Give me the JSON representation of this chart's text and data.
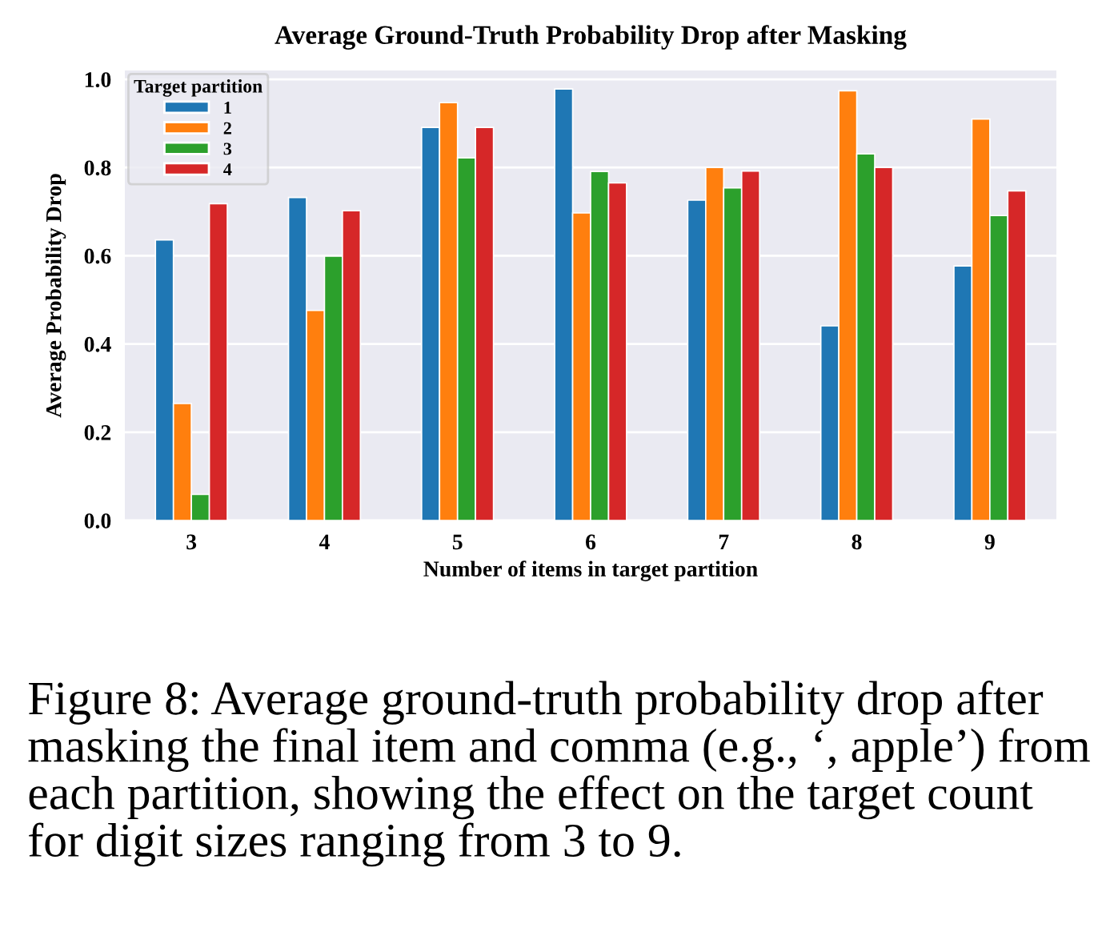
{
  "chart_data": {
    "type": "bar",
    "title": "Average Ground-Truth Probability Drop after Masking",
    "xlabel": "Number of items in target partition",
    "ylabel": "Average Probability Drop",
    "categories": [
      "3",
      "4",
      "5",
      "6",
      "7",
      "8",
      "9"
    ],
    "series": [
      {
        "name": "1",
        "color": "#1f77b4",
        "values": [
          0.636,
          0.732,
          0.891,
          0.978,
          0.726,
          0.441,
          0.577
        ]
      },
      {
        "name": "2",
        "color": "#ff7f0e",
        "values": [
          0.265,
          0.476,
          0.947,
          0.697,
          0.8,
          0.974,
          0.91
        ]
      },
      {
        "name": "3",
        "color": "#2ca02c",
        "values": [
          0.059,
          0.599,
          0.822,
          0.791,
          0.754,
          0.831,
          0.691
        ]
      },
      {
        "name": "4",
        "color": "#d62728",
        "values": [
          0.718,
          0.702,
          0.891,
          0.765,
          0.792,
          0.8,
          0.747
        ]
      }
    ],
    "legend_title": "Target partition",
    "legend": "top left",
    "ylim": [
      0,
      1.02
    ],
    "yticks": [
      {
        "value": 0,
        "label": "0.0"
      },
      {
        "value": 0.2,
        "label": "0.2"
      },
      {
        "value": 0.4,
        "label": "0.4"
      },
      {
        "value": 0.6,
        "label": "0.6"
      },
      {
        "value": 0.8,
        "label": "0.8"
      },
      {
        "value": 1,
        "label": "1.0"
      }
    ],
    "grid": "y",
    "annotations": [
      "Figure 8: Average ground-truth probability drop after masking the final item and comma (e.g., ‘, apple’) from each partition, showing the effect on the target count for digit sizes ranging from 3 to 9."
    ]
  }
}
